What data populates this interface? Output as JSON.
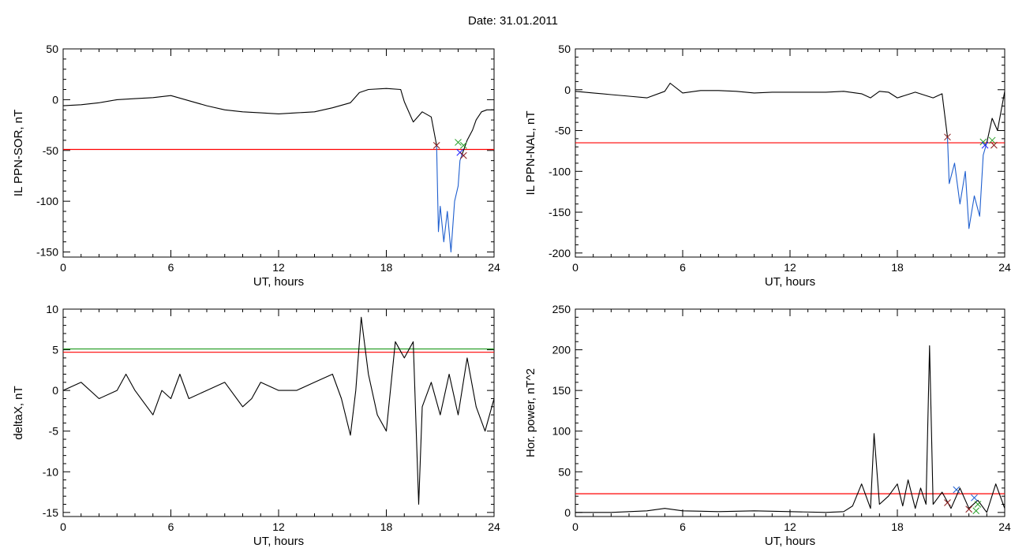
{
  "header": {
    "title": "Date:  31.01.2011"
  },
  "colors": {
    "axis": "#000000",
    "trace": "#000000",
    "threshold_red": "#ff0000",
    "threshold_blue": "#0072bd",
    "threshold_green": "#2ca02c",
    "substorm_trace": "#1f5fcf"
  },
  "chart_data": [
    {
      "id": "p1",
      "type": "line",
      "title": "",
      "xlabel": "UT, hours",
      "ylabel": "IL PPN-SOR, nT",
      "xlim": [
        0,
        24
      ],
      "ylim": [
        -155,
        50
      ],
      "xticks": [
        0,
        6,
        12,
        18,
        24
      ],
      "yticks": [
        -150,
        -100,
        -50,
        0,
        50
      ],
      "series": [
        {
          "color": "#000000",
          "x": [
            0,
            1,
            2,
            3,
            4,
            5,
            6,
            7,
            8,
            9,
            10,
            11,
            12,
            13,
            14,
            15,
            16,
            16.5,
            17,
            18,
            18.8,
            19,
            19.5,
            20,
            20.5,
            20.8
          ],
          "y": [
            -6,
            -5,
            -3,
            0,
            1,
            2,
            4,
            -1,
            -6,
            -10,
            -12,
            -13,
            -14,
            -13,
            -12,
            -8,
            -3,
            7,
            10,
            11,
            10,
            -2,
            -22,
            -12,
            -17,
            -45
          ]
        },
        {
          "color": "#1f5fcf",
          "x": [
            20.8,
            20.9,
            21.0,
            21.2,
            21.4,
            21.6,
            21.8,
            22.0,
            22.1,
            22.2
          ],
          "y": [
            -45,
            -130,
            -105,
            -140,
            -110,
            -150,
            -100,
            -85,
            -60,
            -55
          ]
        },
        {
          "color": "#000000",
          "x": [
            22.2,
            22.5,
            22.8,
            23.0,
            23.3,
            23.6,
            24
          ],
          "y": [
            -55,
            -40,
            -30,
            -20,
            -12,
            -10,
            -10
          ]
        }
      ],
      "hlines": [
        {
          "y": -49,
          "color": "#ff0000"
        }
      ],
      "markers": [
        {
          "x": 20.8,
          "y": -45,
          "color": "#8b1a1a"
        },
        {
          "x": 22.0,
          "y": -42,
          "color": "#2ca02c"
        },
        {
          "x": 22.3,
          "y": -45,
          "color": "#2ca02c"
        },
        {
          "x": 22.1,
          "y": -52,
          "color": "#1f1fff"
        },
        {
          "x": 22.3,
          "y": -55,
          "color": "#8b1a1a"
        }
      ]
    },
    {
      "id": "p2",
      "type": "line",
      "title": "",
      "xlabel": "UT, hours",
      "ylabel": "IL PPN-NAL, nT",
      "xlim": [
        0,
        24
      ],
      "ylim": [
        -205,
        50
      ],
      "xticks": [
        0,
        6,
        12,
        18,
        24
      ],
      "yticks": [
        -200,
        -150,
        -100,
        -50,
        0,
        50
      ],
      "series": [
        {
          "color": "#000000",
          "x": [
            0,
            1,
            2,
            3,
            4,
            5,
            5.3,
            6,
            7,
            8,
            9,
            10,
            11,
            12,
            13,
            14,
            15,
            16,
            16.5,
            17,
            17.5,
            18,
            19,
            20,
            20.5,
            20.8
          ],
          "y": [
            -2,
            -4,
            -6,
            -8,
            -10,
            -2,
            8,
            -4,
            -1,
            -1,
            -2,
            -4,
            -3,
            -3,
            -3,
            -3,
            -2,
            -5,
            -10,
            -2,
            -3,
            -10,
            -3,
            -10,
            -5,
            -58
          ]
        },
        {
          "color": "#1f5fcf",
          "x": [
            20.8,
            20.9,
            21.2,
            21.5,
            21.8,
            22.0,
            22.3,
            22.6,
            22.8,
            23.0
          ],
          "y": [
            -58,
            -115,
            -90,
            -140,
            -100,
            -170,
            -130,
            -155,
            -80,
            -65
          ]
        },
        {
          "color": "#000000",
          "x": [
            23.0,
            23.3,
            23.6,
            24
          ],
          "y": [
            -65,
            -35,
            -50,
            -2
          ]
        }
      ],
      "hlines": [
        {
          "y": -65,
          "color": "#ff0000"
        }
      ],
      "markers": [
        {
          "x": 20.8,
          "y": -58,
          "color": "#8b1a1a"
        },
        {
          "x": 22.8,
          "y": -64,
          "color": "#2ca02c"
        },
        {
          "x": 23.3,
          "y": -62,
          "color": "#2ca02c"
        },
        {
          "x": 22.9,
          "y": -68,
          "color": "#1f1fff"
        },
        {
          "x": 23.4,
          "y": -68,
          "color": "#8b1a1a"
        }
      ]
    },
    {
      "id": "p3",
      "type": "line",
      "title": "",
      "xlabel": "UT, hours",
      "ylabel": "deltaX, nT",
      "xlim": [
        0,
        24
      ],
      "ylim": [
        -15.5,
        10
      ],
      "xticks": [
        0,
        6,
        12,
        18,
        24
      ],
      "yticks": [
        -15,
        -10,
        -5,
        0,
        5,
        10
      ],
      "series": [
        {
          "color": "#000000",
          "x": [
            0,
            1,
            2,
            3,
            3.5,
            4,
            5,
            5.5,
            6,
            6.5,
            7,
            8,
            9,
            10,
            10.5,
            11,
            12,
            13,
            14,
            15,
            15.5,
            16,
            16.3,
            16.6,
            17,
            17.5,
            18,
            18.5,
            19,
            19.5,
            19.8,
            20,
            20.5,
            21,
            21.5,
            22,
            22.5,
            23,
            23.5,
            24
          ],
          "y": [
            0,
            1,
            -1,
            0,
            2,
            0,
            -3,
            0,
            -1,
            2,
            -1,
            0,
            1,
            -2,
            -1,
            1,
            0,
            0,
            1,
            2,
            -1,
            -5.5,
            0,
            9,
            2,
            -3,
            -5,
            6,
            4,
            6,
            -14,
            -2,
            1,
            -3,
            2,
            -3,
            4,
            -2,
            -5,
            -1
          ]
        }
      ],
      "hlines": [
        {
          "y": 5.1,
          "color": "#2ca02c"
        },
        {
          "y": 4.7,
          "color": "#ff0000"
        }
      ],
      "markers": []
    },
    {
      "id": "p4",
      "type": "line",
      "title": "",
      "xlabel": "UT, hours",
      "ylabel": "Hor. power, nT^2",
      "xlim": [
        0,
        24
      ],
      "ylim": [
        -5,
        250
      ],
      "xticks": [
        0,
        6,
        12,
        18,
        24
      ],
      "yticks": [
        0,
        50,
        100,
        150,
        200,
        250
      ],
      "series": [
        {
          "color": "#000000",
          "x": [
            0,
            2,
            4,
            5,
            6,
            8,
            10,
            12,
            14,
            15,
            15.5,
            16,
            16.5,
            16.7,
            17,
            17.5,
            18,
            18.3,
            18.6,
            19,
            19.3,
            19.6,
            19.8,
            20,
            20.5,
            21,
            21.5,
            22,
            22.5,
            23,
            23.5,
            24
          ],
          "y": [
            0,
            0,
            2,
            5,
            2,
            1,
            2,
            1,
            0,
            1,
            8,
            35,
            5,
            97,
            10,
            20,
            35,
            8,
            40,
            5,
            30,
            10,
            205,
            10,
            25,
            5,
            30,
            5,
            15,
            0,
            35,
            5
          ]
        }
      ],
      "hlines": [
        {
          "y": 23,
          "color": "#ff0000"
        }
      ],
      "markers": [
        {
          "x": 20.8,
          "y": 12,
          "color": "#8b1a1a"
        },
        {
          "x": 21.3,
          "y": 28,
          "color": "#1f5fcf"
        },
        {
          "x": 22.0,
          "y": 4,
          "color": "#8b1a1a"
        },
        {
          "x": 22.3,
          "y": 18,
          "color": "#1f5fcf"
        },
        {
          "x": 22.4,
          "y": 2,
          "color": "#2ca02c"
        },
        {
          "x": 22.5,
          "y": 10,
          "color": "#2ca02c"
        }
      ]
    }
  ]
}
